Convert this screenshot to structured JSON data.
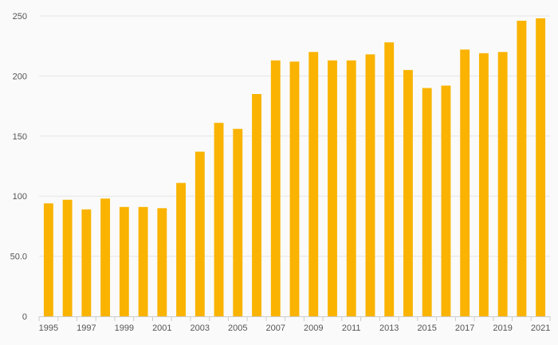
{
  "chart_data": {
    "type": "bar",
    "categories": [
      "1995",
      "1996",
      "1997",
      "1998",
      "1999",
      "2000",
      "2001",
      "2002",
      "2003",
      "2004",
      "2005",
      "2006",
      "2007",
      "2008",
      "2009",
      "2010",
      "2011",
      "2012",
      "2013",
      "2014",
      "2015",
      "2016",
      "2017",
      "2018",
      "2019",
      "2020",
      "2021"
    ],
    "series": [
      {
        "values": [
          94,
          97,
          89,
          98,
          91,
          91,
          90,
          111,
          137,
          161,
          156,
          185,
          213,
          212,
          220,
          213,
          213,
          218,
          228,
          205,
          190,
          192,
          222,
          219,
          220,
          246,
          248
        ]
      }
    ],
    "x_tick_labels": [
      "1995",
      "1997",
      "1999",
      "2001",
      "2003",
      "2005",
      "2007",
      "2009",
      "2011",
      "2013",
      "2015",
      "2017",
      "2019",
      "2021"
    ],
    "y_ticks": [
      0,
      50,
      100,
      150,
      200,
      250
    ],
    "y_tick_labels": [
      "0",
      "50.0",
      "100",
      "150",
      "200",
      "250"
    ],
    "ylim": [
      0,
      250
    ],
    "title": "",
    "xlabel": "",
    "ylabel": "",
    "grid": true,
    "legend": "none",
    "colors": {
      "bar": "#f9b300",
      "grid": "#e6e6e6",
      "axis": "#cccccc",
      "tick_text": "#555555",
      "background": "#fafafa"
    }
  }
}
